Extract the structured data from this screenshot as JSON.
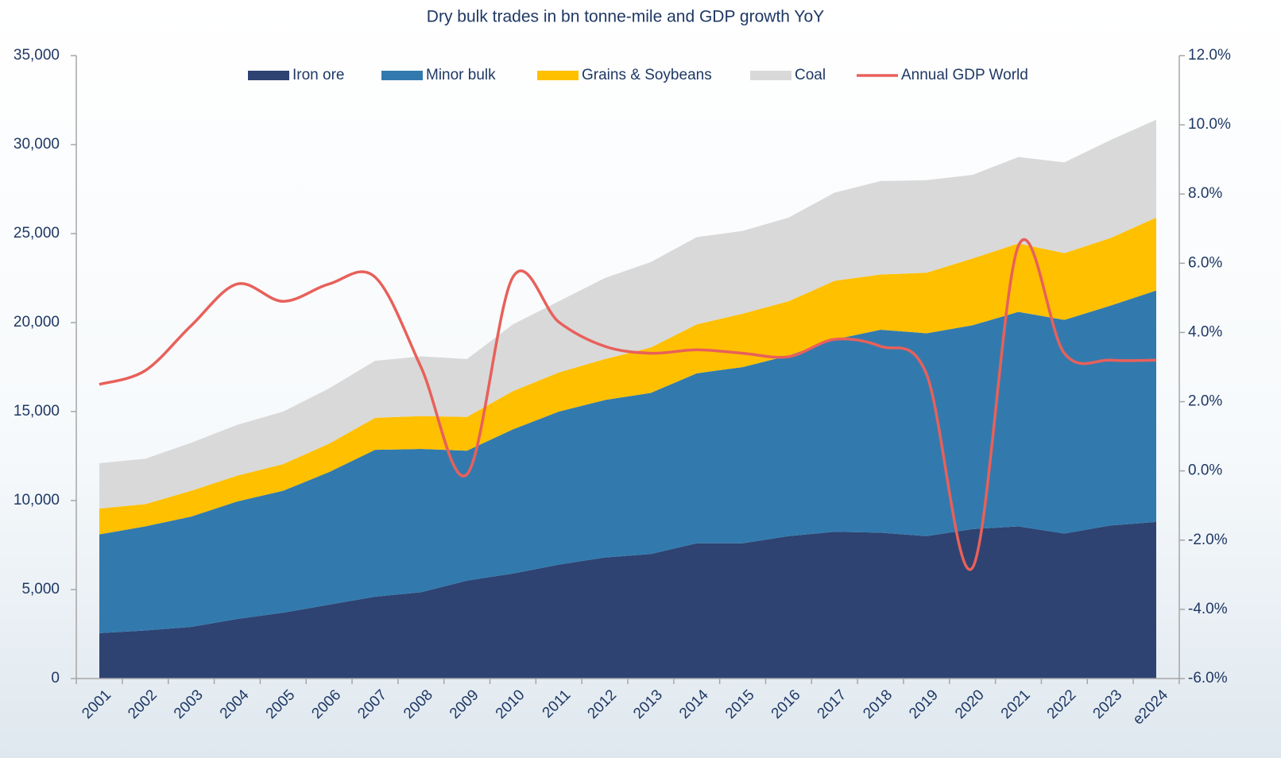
{
  "chart_data": {
    "type": "stacked_area_line",
    "title": "Dry bulk trades in bn tonne-mile and GDP growth YoY",
    "categories": [
      "2001",
      "2002",
      "2003",
      "2004",
      "2005",
      "2006",
      "2007",
      "2008",
      "2009",
      "2010",
      "2011",
      "2012",
      "2013",
      "2014",
      "2015",
      "2016",
      "2017",
      "2018",
      "2019",
      "2020",
      "2021",
      "2022",
      "2023",
      "e2024"
    ],
    "series": [
      {
        "name": "Iron ore",
        "color": "#2e4372",
        "values": [
          2550,
          2700,
          2900,
          3350,
          3700,
          4150,
          4600,
          4850,
          5500,
          5900,
          6400,
          6800,
          7000,
          7600,
          7600,
          8000,
          8250,
          8200,
          8000,
          8400,
          8550,
          8150,
          8600,
          8800
        ]
      },
      {
        "name": "Minor bulk",
        "color": "#327aad",
        "values": [
          5550,
          5850,
          6200,
          6600,
          6850,
          7450,
          8250,
          8050,
          7300,
          8100,
          8600,
          8850,
          9050,
          9550,
          9900,
          10150,
          10800,
          11400,
          11400,
          11450,
          12050,
          12000,
          12350,
          13000
        ]
      },
      {
        "name": "Grains & Soybeans",
        "color": "#ffc000",
        "values": [
          1450,
          1250,
          1450,
          1450,
          1500,
          1600,
          1800,
          1850,
          1900,
          2150,
          2200,
          2300,
          2550,
          2750,
          3000,
          3050,
          3300,
          3100,
          3400,
          3750,
          3850,
          3750,
          3800,
          4100
        ]
      },
      {
        "name": "Coal",
        "color": "#d9d9d9",
        "values": [
          2550,
          2550,
          2700,
          2850,
          2950,
          3100,
          3200,
          3350,
          3250,
          3750,
          4000,
          4550,
          4800,
          4900,
          4650,
          4700,
          4950,
          5250,
          5200,
          4700,
          4850,
          5100,
          5500,
          5500
        ]
      },
      {
        "name": "Annual GDP World",
        "color": "#e8605a",
        "axis": "y2",
        "values": [
          2.5,
          2.9,
          4.2,
          5.4,
          4.9,
          5.4,
          5.6,
          3.0,
          -0.1,
          5.6,
          4.3,
          3.6,
          3.4,
          3.5,
          3.4,
          3.3,
          3.8,
          3.6,
          2.8,
          -2.8,
          6.5,
          3.4,
          3.2,
          3.2
        ]
      }
    ],
    "ylim": [
      0,
      35000
    ],
    "yticks": [
      0,
      {
        "value": 5000,
        "label": "5,000"
      },
      {
        "value": 10000,
        "label": "10,000"
      },
      {
        "value": 15000,
        "label": "15,000"
      },
      {
        "value": 20000,
        "label": "20,000"
      },
      {
        "value": 25000,
        "label": "25,000"
      },
      {
        "value": 30000,
        "label": "30,000"
      },
      {
        "value": 35000,
        "label": "35,000"
      }
    ],
    "y2lim": [
      -6,
      12
    ],
    "y2ticks": [
      {
        "value": -6,
        "label": "-6.0%"
      },
      {
        "value": -4,
        "label": "-4.0%"
      },
      {
        "value": -2,
        "label": "-2.0%"
      },
      {
        "value": 0,
        "label": "0.0%"
      },
      {
        "value": 2,
        "label": "2.0%"
      },
      {
        "value": 4,
        "label": "4.0%"
      },
      {
        "value": 6,
        "label": "6.0%"
      },
      {
        "value": 8,
        "label": "8.0%"
      },
      {
        "value": 10,
        "label": "10.0%"
      },
      {
        "value": 12,
        "label": "12.0%"
      }
    ],
    "legend": "top"
  }
}
